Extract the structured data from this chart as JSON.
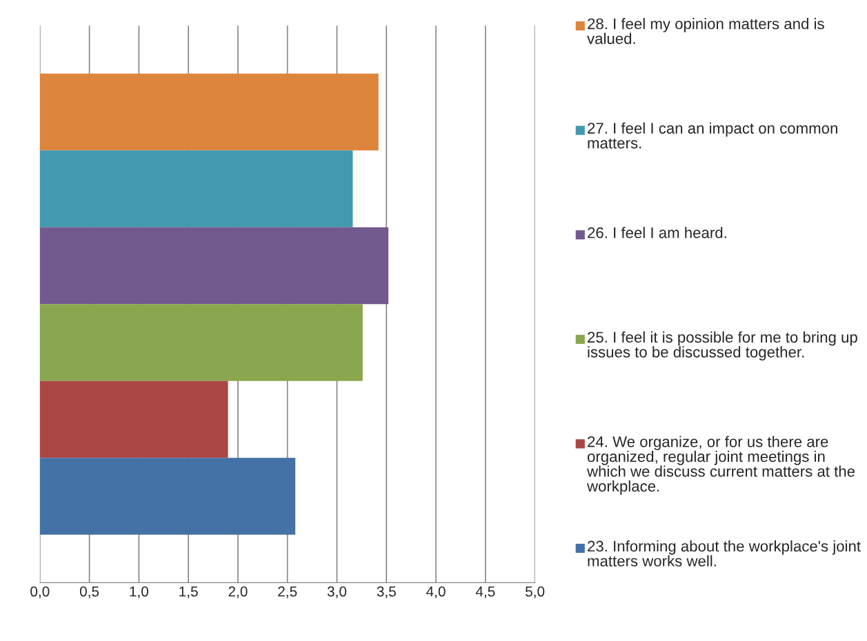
{
  "chart_data": {
    "type": "bar",
    "orientation": "horizontal",
    "categories": [
      null
    ],
    "series": [
      {
        "name": "28. I feel my opinion matters and is valued.",
        "color": "#dd843d",
        "values": [
          3.42
        ]
      },
      {
        "name": "27. I feel I can an impact on common matters.",
        "color": "#4299b0",
        "values": [
          3.16
        ]
      },
      {
        "name": "26. I feel I am heard.",
        "color": "#72598e",
        "values": [
          3.52
        ]
      },
      {
        "name": "25. I feel it is possible for me to bring up issues to be discussed together.",
        "color": "#8aa64e",
        "values": [
          3.26
        ]
      },
      {
        "name": "24. We organize, or for us there are organized, regular joint meetings in which we discuss current matters at the workplace.",
        "color": "#aa4744",
        "values": [
          1.9
        ]
      },
      {
        "name": "23. Informing about the workplace's joint matters works well.",
        "color": "#4472a7",
        "values": [
          2.58
        ]
      }
    ],
    "xlim": [
      0,
      5
    ],
    "xticks": [
      {
        "value": 0,
        "label": "0,0"
      },
      {
        "value": 0.5,
        "label": "0,5"
      },
      {
        "value": 1,
        "label": "1,0"
      },
      {
        "value": 1.5,
        "label": "1,5"
      },
      {
        "value": 2,
        "label": "2,0"
      },
      {
        "value": 2.5,
        "label": "2,5"
      },
      {
        "value": 3,
        "label": "3,0"
      },
      {
        "value": 3.5,
        "label": "3,5"
      },
      {
        "value": 4,
        "label": "4,0"
      },
      {
        "value": 4.5,
        "label": "4,5"
      },
      {
        "value": 5,
        "label": "5,0"
      }
    ],
    "grid": "x",
    "legend": "right"
  }
}
